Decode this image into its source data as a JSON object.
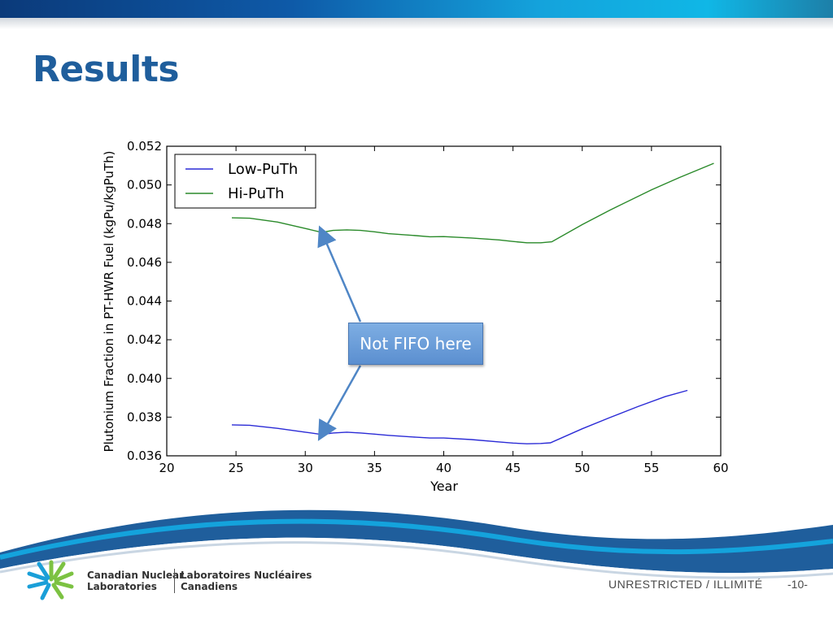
{
  "slide": {
    "title": "Results",
    "callout": "Not FIFO here",
    "footer": {
      "org_en_line1": "Canadian Nuclear",
      "org_en_line2": "Laboratories",
      "org_fr_line1": "Laboratoires Nucléaires",
      "org_fr_line2": "Canadiens",
      "classification": "UNRESTRICTED / ILLIMITÉ",
      "page": "-10-"
    },
    "colors": {
      "title": "#1f5e9c",
      "callout_fill": "#6b9dd9",
      "logo_green": "#7cc242",
      "logo_blue": "#1a9fd8"
    }
  },
  "chart_data": {
    "type": "line",
    "title": "",
    "xlabel": "Year",
    "ylabel": "Plutonium Fraction in PT-HWR Fuel (kgPu/kgPuTh)",
    "xlim": [
      20,
      60
    ],
    "ylim": [
      0.036,
      0.052
    ],
    "xticks": [
      "20",
      "25",
      "30",
      "35",
      "40",
      "45",
      "50",
      "55",
      "60"
    ],
    "yticks": [
      "0.036",
      "0.038",
      "0.040",
      "0.042",
      "0.044",
      "0.046",
      "0.048",
      "0.050",
      "0.052"
    ],
    "grid": false,
    "legend": "top-left",
    "series": [
      {
        "name": "Low-PuTh",
        "color": "#2b2bd6",
        "points": [
          [
            24.7,
            0.0376
          ],
          [
            26,
            0.03758
          ],
          [
            28,
            0.03742
          ],
          [
            30,
            0.03722
          ],
          [
            31.2,
            0.0371
          ],
          [
            32,
            0.03718
          ],
          [
            33,
            0.03722
          ],
          [
            34,
            0.03718
          ],
          [
            35,
            0.03712
          ],
          [
            36,
            0.03706
          ],
          [
            38,
            0.03696
          ],
          [
            39,
            0.03692
          ],
          [
            40,
            0.03692
          ],
          [
            42,
            0.03684
          ],
          [
            44,
            0.03672
          ],
          [
            45,
            0.03666
          ],
          [
            46,
            0.03662
          ],
          [
            47,
            0.03664
          ],
          [
            47.7,
            0.03667
          ],
          [
            50,
            0.0374
          ],
          [
            52,
            0.03798
          ],
          [
            54,
            0.03854
          ],
          [
            56,
            0.03906
          ],
          [
            57.6,
            0.03938
          ]
        ]
      },
      {
        "name": "Hi-PuTh",
        "color": "#2a8a2a",
        "points": [
          [
            24.7,
            0.0483
          ],
          [
            26,
            0.04828
          ],
          [
            28,
            0.04808
          ],
          [
            30,
            0.04775
          ],
          [
            31.2,
            0.04755
          ],
          [
            32,
            0.04765
          ],
          [
            33,
            0.04768
          ],
          [
            34,
            0.04765
          ],
          [
            35,
            0.04758
          ],
          [
            36,
            0.04748
          ],
          [
            38,
            0.04738
          ],
          [
            39,
            0.04732
          ],
          [
            40,
            0.04733
          ],
          [
            42,
            0.04726
          ],
          [
            44,
            0.04716
          ],
          [
            45,
            0.04708
          ],
          [
            46,
            0.04701
          ],
          [
            47,
            0.04701
          ],
          [
            47.8,
            0.04706
          ],
          [
            50,
            0.04795
          ],
          [
            52,
            0.0487
          ],
          [
            55,
            0.04975
          ],
          [
            57,
            0.05038
          ],
          [
            59.5,
            0.05112
          ]
        ]
      }
    ]
  }
}
